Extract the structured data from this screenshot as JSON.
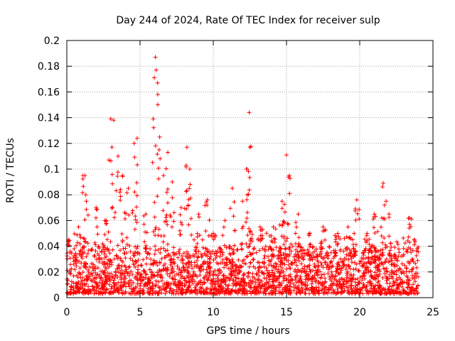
{
  "chart_data": {
    "type": "scatter",
    "title": "Day 244 of 2024, Rate Of TEC Index for receiver sulp",
    "xlabel": "GPS time / hours",
    "ylabel": "ROTI / TECUs",
    "xlim": [
      0,
      25
    ],
    "ylim": [
      0,
      0.2
    ],
    "x_ticks": [
      0,
      5,
      10,
      15,
      20,
      25
    ],
    "x_tick_labels": [
      "0",
      "5",
      "10",
      "15",
      "20",
      "25"
    ],
    "y_ticks": [
      0,
      0.02,
      0.04,
      0.06,
      0.08,
      0.1,
      0.12,
      0.14,
      0.16,
      0.18,
      0.2
    ],
    "y_tick_labels": [
      "0",
      "0.02",
      "0.04",
      "0.06",
      "0.08",
      "0.1",
      "0.12",
      "0.14",
      "0.16",
      "0.18",
      "0.2"
    ],
    "grid": true,
    "marker": "+",
    "marker_color": "#ff0000",
    "series": [
      {
        "name": "ROTI",
        "data_range_x": [
          0,
          24
        ],
        "baseline_range": [
          0.003,
          0.04
        ],
        "peaks": [
          {
            "x": 0.1,
            "y": 0.045
          },
          {
            "x": 0.8,
            "y": 0.055
          },
          {
            "x": 1.1,
            "y": 0.095
          },
          {
            "x": 1.3,
            "y": 0.08
          },
          {
            "x": 2.0,
            "y": 0.07
          },
          {
            "x": 2.6,
            "y": 0.06
          },
          {
            "x": 3.0,
            "y": 0.139
          },
          {
            "x": 3.2,
            "y": 0.138
          },
          {
            "x": 3.5,
            "y": 0.11
          },
          {
            "x": 3.8,
            "y": 0.095
          },
          {
            "x": 4.2,
            "y": 0.085
          },
          {
            "x": 4.6,
            "y": 0.12
          },
          {
            "x": 4.8,
            "y": 0.124
          },
          {
            "x": 5.4,
            "y": 0.065
          },
          {
            "x": 5.9,
            "y": 0.139
          },
          {
            "x": 6.05,
            "y": 0.187
          },
          {
            "x": 6.1,
            "y": 0.177
          },
          {
            "x": 6.2,
            "y": 0.167
          },
          {
            "x": 6.3,
            "y": 0.115
          },
          {
            "x": 6.6,
            "y": 0.095
          },
          {
            "x": 6.9,
            "y": 0.113
          },
          {
            "x": 7.2,
            "y": 0.09
          },
          {
            "x": 7.8,
            "y": 0.07
          },
          {
            "x": 8.2,
            "y": 0.117
          },
          {
            "x": 8.4,
            "y": 0.1
          },
          {
            "x": 9.0,
            "y": 0.065
          },
          {
            "x": 9.6,
            "y": 0.076
          },
          {
            "x": 10.0,
            "y": 0.05
          },
          {
            "x": 10.8,
            "y": 0.06
          },
          {
            "x": 11.3,
            "y": 0.085
          },
          {
            "x": 12.0,
            "y": 0.075
          },
          {
            "x": 12.3,
            "y": 0.1
          },
          {
            "x": 12.45,
            "y": 0.144
          },
          {
            "x": 12.5,
            "y": 0.117
          },
          {
            "x": 13.2,
            "y": 0.055
          },
          {
            "x": 14.1,
            "y": 0.055
          },
          {
            "x": 14.7,
            "y": 0.075
          },
          {
            "x": 15.0,
            "y": 0.111
          },
          {
            "x": 15.2,
            "y": 0.095
          },
          {
            "x": 15.8,
            "y": 0.065
          },
          {
            "x": 16.6,
            "y": 0.05
          },
          {
            "x": 17.5,
            "y": 0.055
          },
          {
            "x": 18.5,
            "y": 0.05
          },
          {
            "x": 19.2,
            "y": 0.055
          },
          {
            "x": 19.8,
            "y": 0.076
          },
          {
            "x": 20.5,
            "y": 0.05
          },
          {
            "x": 21.0,
            "y": 0.065
          },
          {
            "x": 21.6,
            "y": 0.089
          },
          {
            "x": 21.8,
            "y": 0.075
          },
          {
            "x": 22.0,
            "y": 0.065
          },
          {
            "x": 23.4,
            "y": 0.062
          },
          {
            "x": 23.7,
            "y": 0.045
          }
        ]
      }
    ]
  }
}
